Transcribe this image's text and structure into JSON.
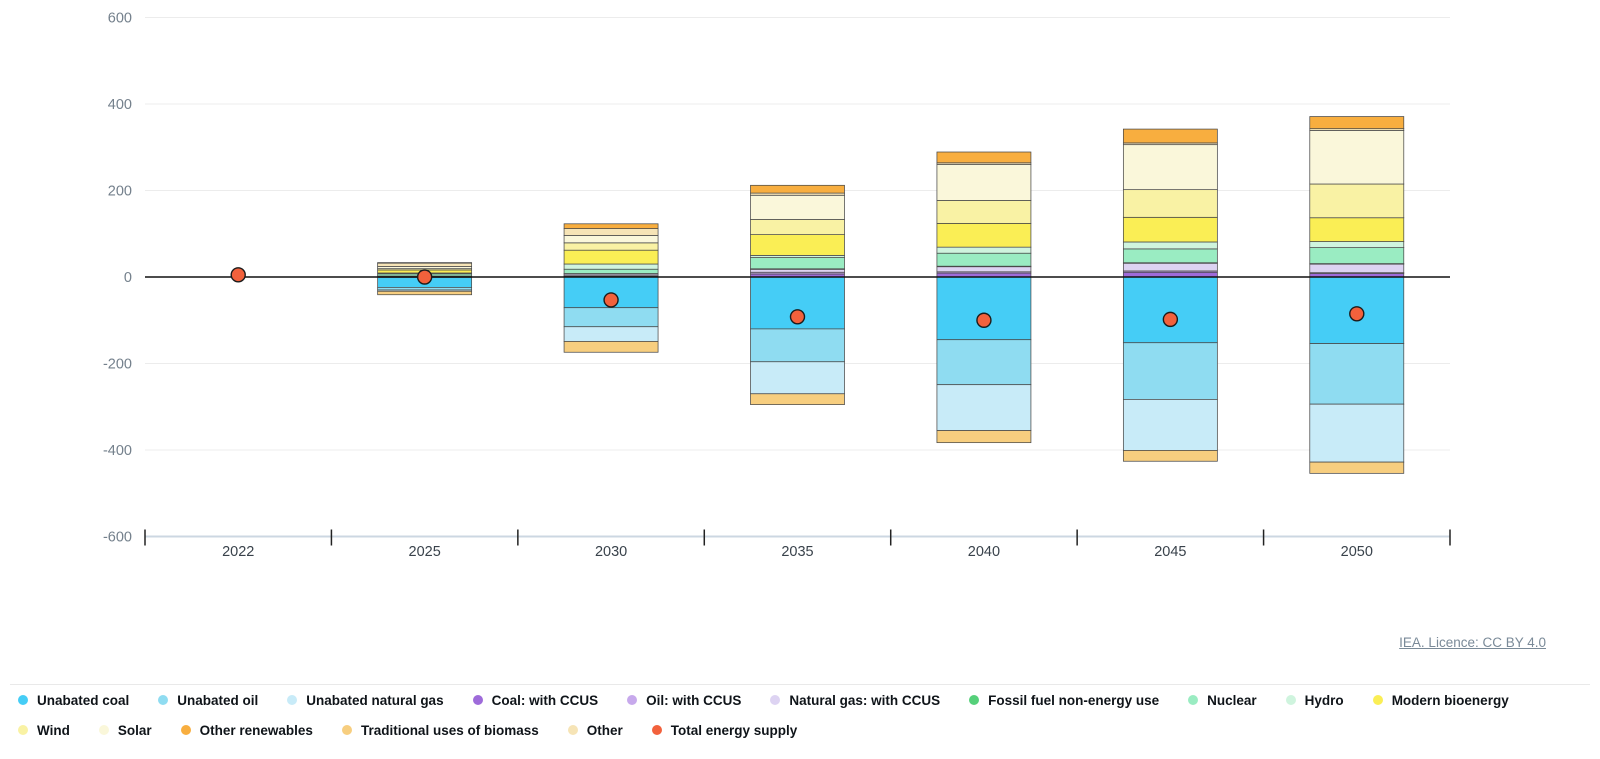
{
  "attribution": {
    "label": "IEA. Licence: CC BY 4.0"
  },
  "chart_data": {
    "type": "bar",
    "stacked": true,
    "title": "",
    "xlabel": "",
    "ylabel": "",
    "categories": [
      "2022",
      "2025",
      "2030",
      "2035",
      "2040",
      "2045",
      "2050"
    ],
    "ylim": [
      -600,
      600
    ],
    "yticks": [
      600,
      400,
      200,
      0,
      -200,
      -400,
      -600
    ],
    "grid": true,
    "legend_position": "bottom",
    "series": [
      {
        "name": "Unabated coal",
        "color": "#45CDF6",
        "values": [
          0,
          -24,
          -71,
          -120,
          -145,
          -152,
          -154
        ]
      },
      {
        "name": "Unabated oil",
        "color": "#8FDCF1",
        "values": [
          0,
          -6,
          -44,
          -76,
          -104,
          -131,
          -140
        ]
      },
      {
        "name": "Unabated natural gas",
        "color": "#C8EBF8",
        "values": [
          0,
          -3,
          -34,
          -74,
          -106,
          -118,
          -134
        ]
      },
      {
        "name": "Traditional uses of biomass",
        "color": "#F7CE7F",
        "values": [
          0,
          -8,
          -25,
          -25,
          -28,
          -25,
          -26
        ]
      },
      {
        "name": "Coal: with CCUS",
        "color": "#9E6BDA",
        "values": [
          0,
          0.5,
          2,
          7,
          9,
          11,
          8
        ]
      },
      {
        "name": "Oil: with CCUS",
        "color": "#C7A9EC",
        "values": [
          0,
          0.3,
          1,
          4,
          3,
          3,
          2
        ]
      },
      {
        "name": "Natural gas: with CCUS",
        "color": "#DDD3F2",
        "values": [
          0,
          1,
          4,
          7,
          12,
          18,
          20
        ]
      },
      {
        "name": "Fossil fuel non-energy use",
        "color": "#55D07A",
        "values": [
          0,
          0.5,
          1,
          1,
          1,
          1,
          1
        ]
      },
      {
        "name": "Nuclear",
        "color": "#9AECC2",
        "values": [
          0,
          5,
          10,
          26,
          30,
          32,
          37
        ]
      },
      {
        "name": "Hydro",
        "color": "#CFF4DE",
        "values": [
          0,
          2,
          12,
          5,
          14,
          16,
          14
        ]
      },
      {
        "name": "Modern bioenergy",
        "color": "#FAEE55",
        "values": [
          0,
          7,
          32,
          48,
          55,
          57,
          55
        ]
      },
      {
        "name": "Wind",
        "color": "#F9F2A4",
        "values": [
          0,
          3,
          17,
          35,
          53,
          64,
          78
        ]
      },
      {
        "name": "Solar",
        "color": "#FAF7DA",
        "values": [
          0,
          5,
          17,
          56,
          83,
          104,
          124
        ]
      },
      {
        "name": "Other",
        "color": "#F6E4B6",
        "values": [
          0,
          8,
          16,
          5,
          4,
          4,
          4
        ]
      },
      {
        "name": "Other renewables",
        "color": "#F8AE3F",
        "values": [
          0,
          1,
          11,
          18,
          25,
          32,
          28
        ]
      }
    ],
    "dot_series": {
      "name": "Total energy supply",
      "color": "#F2613C",
      "values": [
        5,
        0,
        -53,
        -92,
        -100,
        -98,
        -85
      ]
    },
    "colors": {
      "zero_line": "#111111",
      "gridline": "#ececec",
      "axis_line": "#ccd7e2",
      "tick_mark": "#222222",
      "y_label": "#74808c",
      "x_label": "#39424b",
      "segment_stroke": "#4a4a4a",
      "dot_stroke": "#1c1c1c"
    }
  },
  "legend": {
    "rows": [
      [
        {
          "label": "Unabated coal",
          "color": "#45CDF6"
        },
        {
          "label": "Unabated oil",
          "color": "#8FDCF1"
        },
        {
          "label": "Unabated natural gas",
          "color": "#C8EBF8"
        },
        {
          "label": "Coal: with CCUS",
          "color": "#9E6BDA"
        },
        {
          "label": "Oil: with CCUS",
          "color": "#C7A9EC"
        },
        {
          "label": "Natural gas: with CCUS",
          "color": "#DDD3F2"
        },
        {
          "label": "Fossil fuel non-energy use",
          "color": "#55D07A"
        },
        {
          "label": "Nuclear",
          "color": "#9AECC2"
        },
        {
          "label": "Hydro",
          "color": "#CFF4DE"
        },
        {
          "label": "Modern bioenergy",
          "color": "#FAEE55"
        }
      ],
      [
        {
          "label": "Wind",
          "color": "#F9F2A4"
        },
        {
          "label": "Solar",
          "color": "#FAF7DA"
        },
        {
          "label": "Other renewables",
          "color": "#F8AE3F"
        },
        {
          "label": "Traditional uses of biomass",
          "color": "#F7CE7F"
        },
        {
          "label": "Other",
          "color": "#F6E4B6"
        },
        {
          "label": "Total energy supply",
          "color": "#F2613C"
        }
      ]
    ]
  }
}
